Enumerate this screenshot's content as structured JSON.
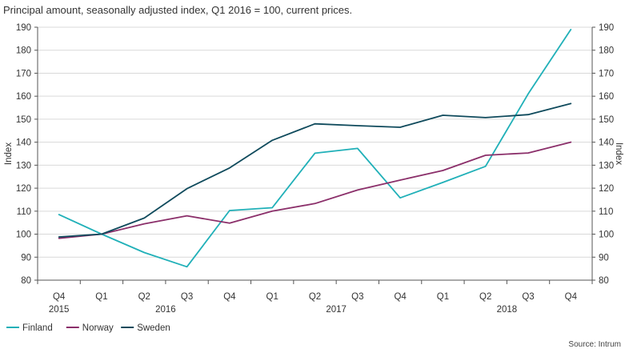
{
  "title": "Principal amount, seasonally adjusted index, Q1 2016 = 100, current prices.",
  "source": "Source: Intrum",
  "chart_data": {
    "type": "line",
    "title": "Principal amount, seasonally adjusted index, Q1 2016 = 100, current prices.",
    "categories": [
      "Q4",
      "Q1",
      "Q2",
      "Q3",
      "Q4",
      "Q1",
      "Q2",
      "Q3",
      "Q4",
      "Q1",
      "Q2",
      "Q3",
      "Q4"
    ],
    "years": [
      {
        "label": "2015",
        "index": 0
      },
      {
        "label": "2016",
        "index": 2.5
      },
      {
        "label": "2017",
        "index": 6.5
      },
      {
        "label": "2018",
        "index": 10.5
      }
    ],
    "ylabel": "Index",
    "ylabel_right": "Index",
    "ylim": [
      80,
      190
    ],
    "yticks": [
      80,
      90,
      100,
      110,
      120,
      130,
      140,
      150,
      160,
      170,
      180,
      190
    ],
    "grid": true,
    "legend": "bottom-left",
    "series": [
      {
        "name": "Finland",
        "color": "#20b0b8",
        "values": [
          108.5,
          100,
          92,
          85.8,
          110.3,
          111.5,
          135.2,
          137.3,
          115.8,
          122.5,
          129.5,
          161,
          189
        ]
      },
      {
        "name": "Norway",
        "color": "#8b2f6a",
        "values": [
          98.2,
          100,
          104.5,
          108,
          104.8,
          110,
          113.3,
          119.2,
          123.5,
          127.7,
          134.3,
          135.3,
          140
        ]
      },
      {
        "name": "Sweden",
        "color": "#0f4a5c",
        "values": [
          98.8,
          100,
          107,
          119.8,
          128.8,
          140.8,
          148,
          147.2,
          146.5,
          151.7,
          150.7,
          152,
          156.8
        ]
      }
    ]
  }
}
